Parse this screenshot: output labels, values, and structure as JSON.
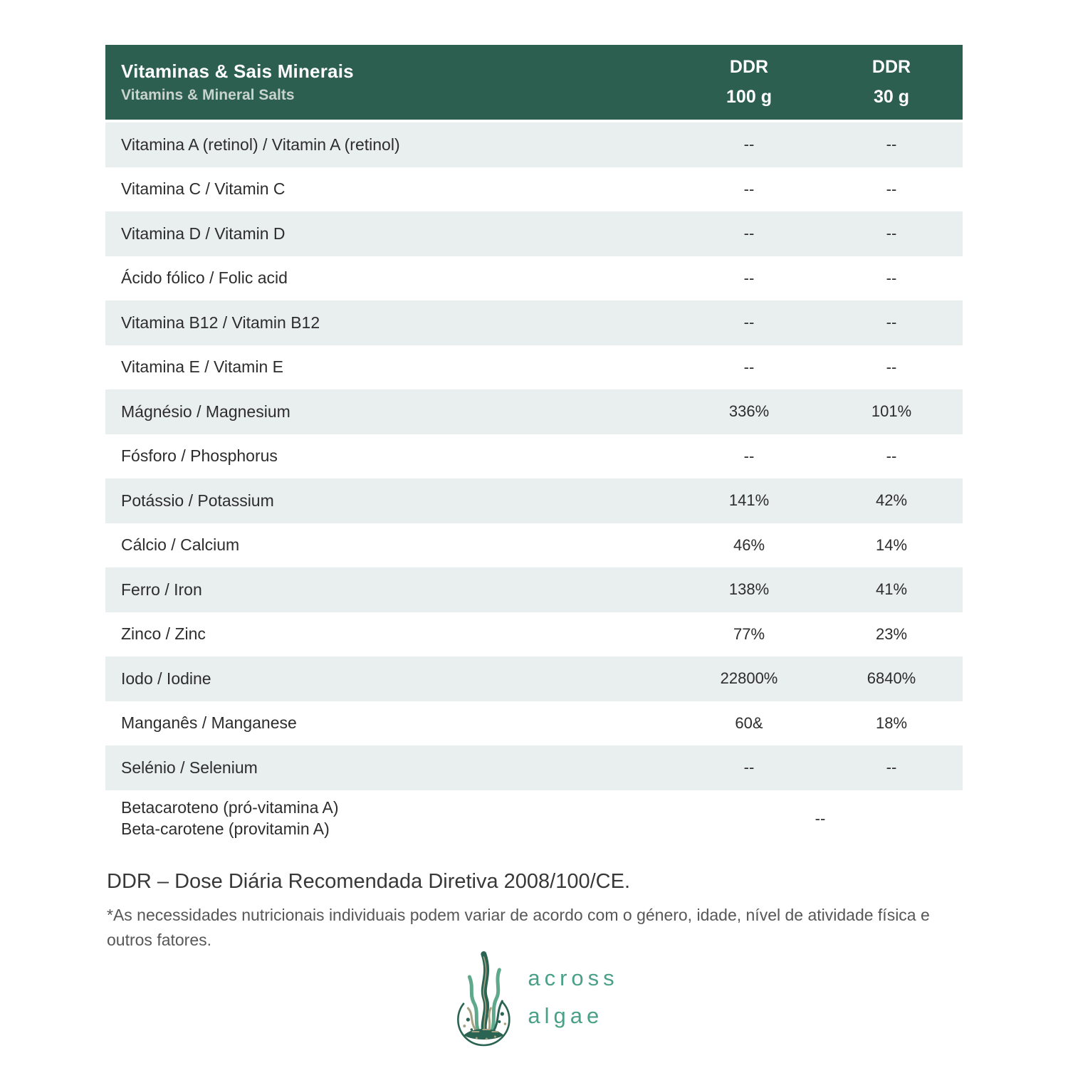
{
  "table": {
    "header": {
      "title_pt": "Vitaminas & Sais Minerais",
      "title_en": "Vitamins & Mineral Salts",
      "col1_line1": "DDR",
      "col1_line2": "100 g",
      "col2_line1": "DDR",
      "col2_line2": "30 g"
    },
    "rows": [
      {
        "label": "Vitamina A (retinol) / Vitamin A (retinol)",
        "ddr_100g": "--",
        "ddr_30g": "--"
      },
      {
        "label": "Vitamina C / Vitamin C",
        "ddr_100g": "--",
        "ddr_30g": "--"
      },
      {
        "label": "Vitamina D / Vitamin D",
        "ddr_100g": "--",
        "ddr_30g": "--"
      },
      {
        "label": "Ácido fólico / Folic acid",
        "ddr_100g": "--",
        "ddr_30g": "--"
      },
      {
        "label": "Vitamina B12 / Vitamin B12",
        "ddr_100g": "--",
        "ddr_30g": "--"
      },
      {
        "label": "Vitamina E / Vitamin E",
        "ddr_100g": "--",
        "ddr_30g": "--"
      },
      {
        "label": "Mágnésio / Magnesium",
        "ddr_100g": "336%",
        "ddr_30g": "101%"
      },
      {
        "label": "Fósforo / Phosphorus",
        "ddr_100g": "--",
        "ddr_30g": "--"
      },
      {
        "label": "Potássio / Potassium",
        "ddr_100g": "141%",
        "ddr_30g": "42%"
      },
      {
        "label": "Cálcio / Calcium",
        "ddr_100g": "46%",
        "ddr_30g": "14%"
      },
      {
        "label": "Ferro / Iron",
        "ddr_100g": "138%",
        "ddr_30g": "41%"
      },
      {
        "label": "Zinco / Zinc",
        "ddr_100g": "77%",
        "ddr_30g": "23%"
      },
      {
        "label": "Iodo / Iodine",
        "ddr_100g": "22800%",
        "ddr_30g": "6840%"
      },
      {
        "label": "Manganês / Manganese",
        "ddr_100g": "60&",
        "ddr_30g": "18%"
      },
      {
        "label": "Selénio / Selenium",
        "ddr_100g": "--",
        "ddr_30g": "--"
      },
      {
        "label_lines": [
          "Betacaroteno (pró-vitamina A)",
          "Beta-carotene (provitamin A)"
        ],
        "value_span": "--"
      }
    ]
  },
  "footer": {
    "ddr_definition": "DDR – Dose Diária Recomendada Diretiva 2008/100/CE.",
    "disclaimer": "*As necessidades nutricionais individuais podem variar de acordo com o género, idade, nível de atividade física e outros fatores."
  },
  "logo": {
    "line1": "across",
    "line2": "algae"
  },
  "colors": {
    "header_bg": "#2d5f51",
    "header_subtitle": "#c9d3cd",
    "row_shaded": "#e9eeee",
    "row_text": "#2d2d2d",
    "footnote_text": "#575757",
    "logo_green": "#4aa188",
    "logo_dark": "#2c6454",
    "logo_mid": "#5ea98c",
    "logo_tan": "#a8a284"
  }
}
